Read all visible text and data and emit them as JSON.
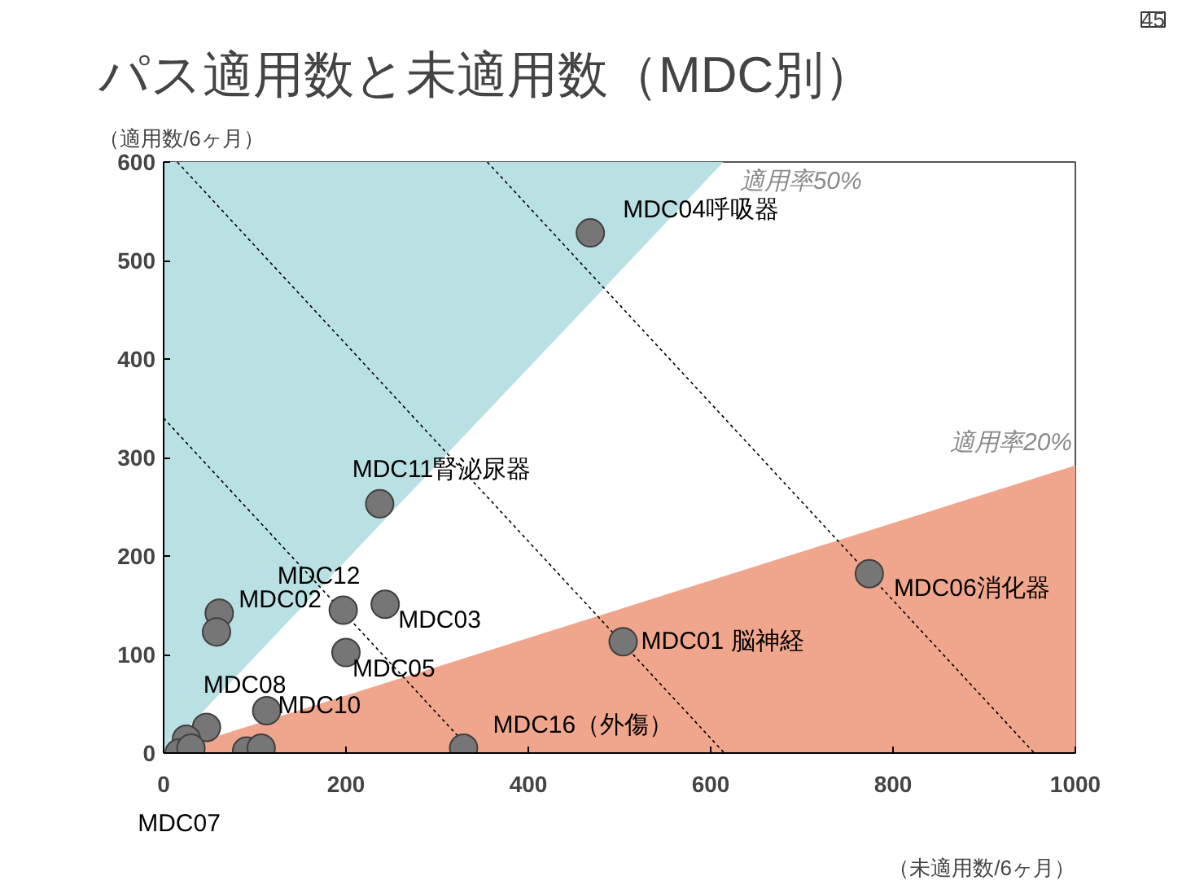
{
  "chart_data": {
    "type": "scatter",
    "title": "パス適用数と未適用数（MDC別）",
    "xlabel": "（未適用数/6ヶ月）",
    "ylabel": "（適用数/6ヶ月）",
    "xlim": [
      0,
      1000
    ],
    "ylim": [
      0,
      600
    ],
    "xticks": [
      0,
      200,
      400,
      600,
      800,
      1000
    ],
    "yticks": [
      0,
      100,
      200,
      300,
      400,
      500,
      600
    ],
    "series": [
      {
        "type": "area",
        "name": "適用率50%",
        "color": "#b9e0e2",
        "x": [
          0,
          0,
          614
        ],
        "values": [
          0,
          600,
          600
        ]
      },
      {
        "type": "area",
        "name": "適用率20%",
        "color": "#f0a68c",
        "x": [
          0,
          1000,
          1000
        ],
        "values": [
          0,
          292,
          0
        ]
      },
      {
        "type": "line",
        "line_style": "dashed",
        "color": "#000000",
        "x": [
          0,
          340
        ],
        "values": [
          340,
          0
        ]
      },
      {
        "type": "line",
        "line_style": "dashed",
        "color": "#000000",
        "x": [
          15,
          615
        ],
        "values": [
          600,
          0
        ]
      },
      {
        "type": "line",
        "line_style": "dashed",
        "color": "#000000",
        "x": [
          355,
          955
        ],
        "values": [
          600,
          0
        ]
      },
      {
        "marker": "circle",
        "color": "#767676",
        "x": [
          468,
          237,
          197,
          243,
          200,
          61,
          58,
          113,
          47,
          25,
          17,
          30,
          91,
          107,
          329,
          774,
          504
        ],
        "values": [
          528,
          253,
          145,
          151,
          102,
          142,
          123,
          43,
          26,
          14,
          0,
          5,
          2,
          5,
          5,
          182,
          113
        ]
      }
    ],
    "annotations": [
      {
        "text": "MDC04呼吸器",
        "x": 468,
        "y": 528
      },
      {
        "text": "MDC11腎泌尿器",
        "x": 237,
        "y": 253
      },
      {
        "text": "MDC12",
        "x": 197,
        "y": 145
      },
      {
        "text": "MDC03",
        "x": 243,
        "y": 151
      },
      {
        "text": "MDC05",
        "x": 200,
        "y": 102
      },
      {
        "text": "MDC02",
        "x": 61,
        "y": 142
      },
      {
        "text": "MDC08",
        "x": 47,
        "y": 26
      },
      {
        "text": "MDC10",
        "x": 113,
        "y": 43
      },
      {
        "text": "MDC07",
        "x": 17,
        "y": 0
      },
      {
        "text": "MDC16（外傷）",
        "x": 329,
        "y": 5
      },
      {
        "text": "MDC06消化器",
        "x": 774,
        "y": 182
      },
      {
        "text": "MDC01  脳神経",
        "x": 504,
        "y": 113
      },
      "45"
    ]
  }
}
